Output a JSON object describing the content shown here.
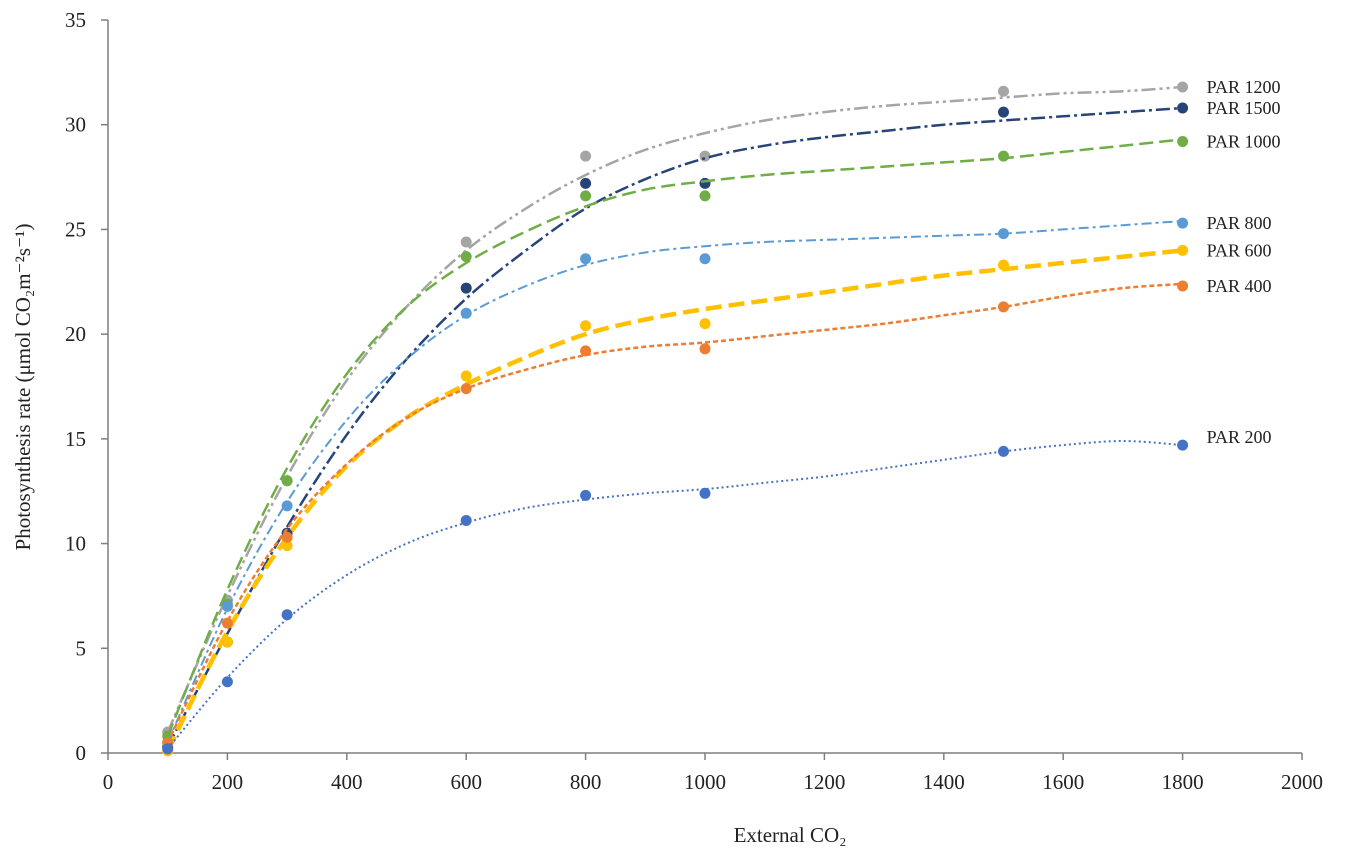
{
  "chart_data": {
    "type": "line",
    "xlabel": "External  CO₂",
    "ylabel": "Photosynthesis  rate  (μmol  CO₂m⁻²s⁻¹)",
    "xlim": [
      0,
      2000
    ],
    "ylim": [
      0,
      35
    ],
    "xticks": [
      "0",
      "200",
      "400",
      "600",
      "800",
      "1000",
      "1200",
      "1400",
      "1600",
      "1800",
      "2000"
    ],
    "yticks": [
      "0",
      "5",
      "10",
      "15",
      "20",
      "25",
      "30",
      "35"
    ],
    "grid": false,
    "legend": "inline labels at right end of each series",
    "series": [
      {
        "name": "PAR 1200",
        "color": "#a5a5a5",
        "dash": "14 4 3 4 3 4",
        "width": 2.5,
        "points": [
          [
            100,
            1.0
          ],
          [
            200,
            7.3
          ],
          [
            300,
            13.0
          ],
          [
            600,
            24.4
          ],
          [
            800,
            28.5
          ],
          [
            1000,
            28.5
          ],
          [
            1500,
            31.6
          ],
          [
            1800,
            31.8
          ]
        ],
        "fit": [
          [
            100,
            1.0
          ],
          [
            200,
            7.5
          ],
          [
            300,
            13.2
          ],
          [
            400,
            17.8
          ],
          [
            500,
            21.3
          ],
          [
            600,
            24.0
          ],
          [
            700,
            26.0
          ],
          [
            800,
            27.6
          ],
          [
            900,
            28.8
          ],
          [
            1000,
            29.6
          ],
          [
            1100,
            30.2
          ],
          [
            1200,
            30.6
          ],
          [
            1300,
            30.9
          ],
          [
            1400,
            31.1
          ],
          [
            1500,
            31.3
          ],
          [
            1600,
            31.5
          ],
          [
            1700,
            31.6
          ],
          [
            1800,
            31.8
          ]
        ]
      },
      {
        "name": "PAR 1500",
        "color": "#264478",
        "dash": "14 4 3 4",
        "width": 2.5,
        "points": [
          [
            100,
            0.3
          ],
          [
            200,
            5.3
          ],
          [
            300,
            10.5
          ],
          [
            600,
            22.2
          ],
          [
            800,
            27.2
          ],
          [
            1000,
            27.2
          ],
          [
            1500,
            30.6
          ],
          [
            1800,
            30.8
          ]
        ],
        "fit": [
          [
            100,
            0.3
          ],
          [
            200,
            5.7
          ],
          [
            300,
            10.8
          ],
          [
            400,
            15.2
          ],
          [
            500,
            18.8
          ],
          [
            600,
            21.7
          ],
          [
            700,
            24.0
          ],
          [
            800,
            26.0
          ],
          [
            900,
            27.4
          ],
          [
            1000,
            28.4
          ],
          [
            1100,
            29.0
          ],
          [
            1200,
            29.4
          ],
          [
            1300,
            29.7
          ],
          [
            1400,
            30.0
          ],
          [
            1500,
            30.2
          ],
          [
            1600,
            30.4
          ],
          [
            1700,
            30.6
          ],
          [
            1800,
            30.8
          ]
        ]
      },
      {
        "name": "PAR 1000",
        "color": "#70ad47",
        "dash": "14 6",
        "width": 2.5,
        "points": [
          [
            100,
            0.8
          ],
          [
            200,
            7.1
          ],
          [
            300,
            13.0
          ],
          [
            600,
            23.7
          ],
          [
            800,
            26.6
          ],
          [
            1000,
            26.6
          ],
          [
            1500,
            28.5
          ],
          [
            1800,
            29.2
          ]
        ],
        "fit": [
          [
            100,
            0.8
          ],
          [
            200,
            7.8
          ],
          [
            300,
            13.6
          ],
          [
            400,
            18.1
          ],
          [
            500,
            21.3
          ],
          [
            600,
            23.4
          ],
          [
            700,
            24.9
          ],
          [
            800,
            26.1
          ],
          [
            900,
            26.9
          ],
          [
            1000,
            27.3
          ],
          [
            1100,
            27.6
          ],
          [
            1200,
            27.8
          ],
          [
            1300,
            28.0
          ],
          [
            1400,
            28.2
          ],
          [
            1500,
            28.4
          ],
          [
            1600,
            28.7
          ],
          [
            1700,
            29.0
          ],
          [
            1800,
            29.3
          ]
        ]
      },
      {
        "name": "PAR 800",
        "color": "#5b9bd5",
        "dash": "10 4 3 4",
        "width": 2,
        "points": [
          [
            100,
            0.5
          ],
          [
            200,
            7.0
          ],
          [
            300,
            11.8
          ],
          [
            600,
            21.0
          ],
          [
            800,
            23.6
          ],
          [
            1000,
            23.6
          ],
          [
            1500,
            24.8
          ],
          [
            1800,
            25.3
          ]
        ],
        "fit": [
          [
            100,
            0.5
          ],
          [
            200,
            6.9
          ],
          [
            300,
            12.0
          ],
          [
            400,
            15.9
          ],
          [
            500,
            18.8
          ],
          [
            600,
            20.9
          ],
          [
            700,
            22.3
          ],
          [
            800,
            23.3
          ],
          [
            900,
            23.9
          ],
          [
            1000,
            24.2
          ],
          [
            1100,
            24.4
          ],
          [
            1200,
            24.5
          ],
          [
            1300,
            24.6
          ],
          [
            1400,
            24.7
          ],
          [
            1500,
            24.8
          ],
          [
            1600,
            25.0
          ],
          [
            1700,
            25.2
          ],
          [
            1800,
            25.4
          ]
        ]
      },
      {
        "name": "PAR 600",
        "color": "#ffc000",
        "dash": "16 7",
        "width": 4.5,
        "points": [
          [
            100,
            0.1
          ],
          [
            200,
            5.3
          ],
          [
            300,
            9.9
          ],
          [
            600,
            18.0
          ],
          [
            800,
            20.4
          ],
          [
            1000,
            20.5
          ],
          [
            1500,
            23.3
          ],
          [
            1800,
            24.0
          ]
        ],
        "fit": [
          [
            100,
            0.1
          ],
          [
            200,
            5.8
          ],
          [
            300,
            10.3
          ],
          [
            400,
            13.7
          ],
          [
            500,
            16.0
          ],
          [
            600,
            17.6
          ],
          [
            700,
            18.9
          ],
          [
            800,
            20.0
          ],
          [
            900,
            20.7
          ],
          [
            1000,
            21.2
          ],
          [
            1100,
            21.6
          ],
          [
            1200,
            22.0
          ],
          [
            1300,
            22.4
          ],
          [
            1400,
            22.8
          ],
          [
            1500,
            23.1
          ],
          [
            1600,
            23.4
          ],
          [
            1700,
            23.7
          ],
          [
            1800,
            24.0
          ]
        ]
      },
      {
        "name": "PAR 400",
        "color": "#ed7d31",
        "dash": "5 3",
        "width": 2.5,
        "points": [
          [
            100,
            0.5
          ],
          [
            200,
            6.2
          ],
          [
            300,
            10.3
          ],
          [
            600,
            17.4
          ],
          [
            800,
            19.2
          ],
          [
            1000,
            19.3
          ],
          [
            1500,
            21.3
          ],
          [
            1800,
            22.3
          ]
        ],
        "fit": [
          [
            100,
            0.5
          ],
          [
            200,
            6.3
          ],
          [
            300,
            10.7
          ],
          [
            400,
            13.8
          ],
          [
            500,
            16.0
          ],
          [
            600,
            17.4
          ],
          [
            700,
            18.3
          ],
          [
            800,
            19.0
          ],
          [
            900,
            19.4
          ],
          [
            1000,
            19.6
          ],
          [
            1100,
            19.9
          ],
          [
            1200,
            20.2
          ],
          [
            1300,
            20.5
          ],
          [
            1400,
            20.9
          ],
          [
            1500,
            21.3
          ],
          [
            1600,
            21.8
          ],
          [
            1700,
            22.2
          ],
          [
            1800,
            22.4
          ]
        ]
      },
      {
        "name": "PAR 200",
        "color": "#4472c4",
        "dash": "2 3",
        "width": 2,
        "points": [
          [
            100,
            0.2
          ],
          [
            200,
            3.4
          ],
          [
            300,
            6.6
          ],
          [
            600,
            11.1
          ],
          [
            800,
            12.3
          ],
          [
            1000,
            12.4
          ],
          [
            1500,
            14.4
          ],
          [
            1800,
            14.7
          ]
        ],
        "fit": [
          [
            100,
            0.2
          ],
          [
            200,
            3.6
          ],
          [
            300,
            6.4
          ],
          [
            400,
            8.5
          ],
          [
            500,
            10.0
          ],
          [
            600,
            11.0
          ],
          [
            700,
            11.7
          ],
          [
            800,
            12.1
          ],
          [
            900,
            12.4
          ],
          [
            1000,
            12.6
          ],
          [
            1100,
            12.9
          ],
          [
            1200,
            13.2
          ],
          [
            1300,
            13.6
          ],
          [
            1400,
            14.0
          ],
          [
            1500,
            14.4
          ],
          [
            1600,
            14.7
          ],
          [
            1700,
            14.9
          ],
          [
            1800,
            14.7
          ]
        ]
      }
    ]
  }
}
